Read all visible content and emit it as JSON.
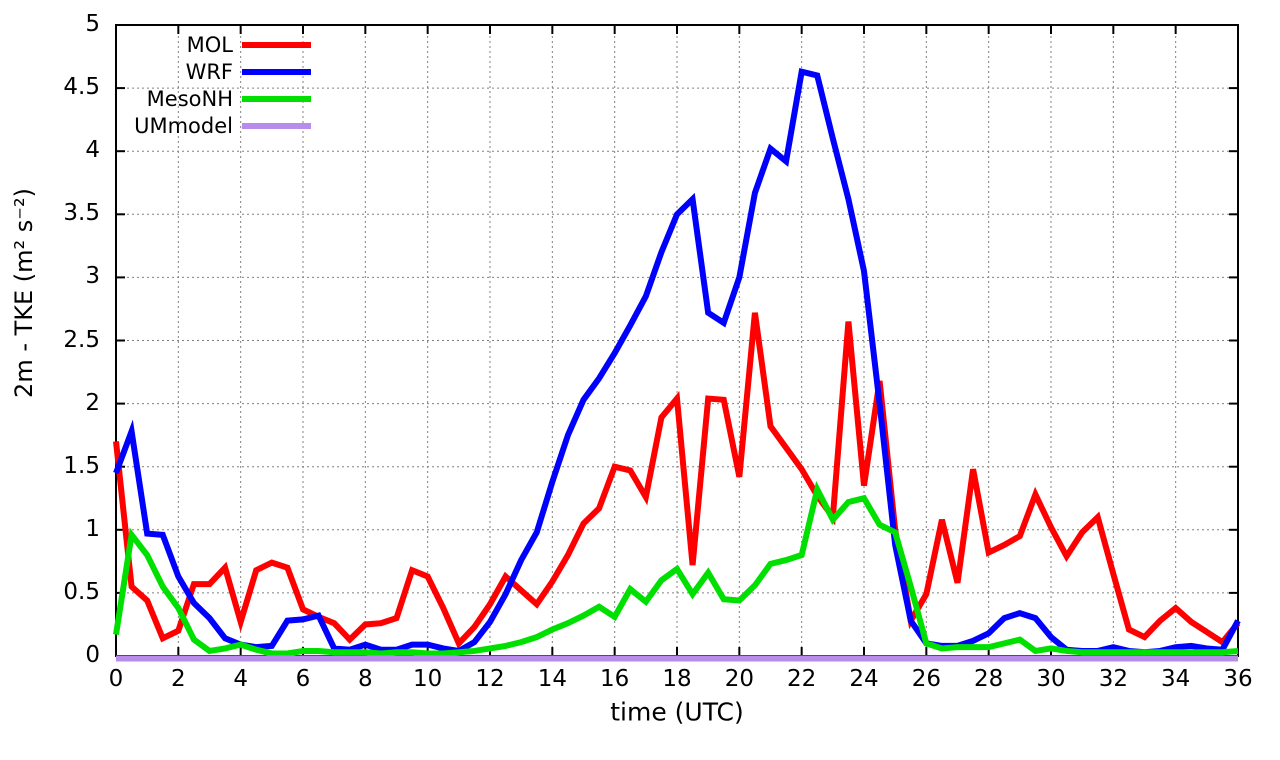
{
  "chart_data": {
    "type": "line",
    "title": "",
    "xlabel": "time (UTC)",
    "ylabel": "2m - TKE (m² s⁻²)",
    "xlim": [
      0,
      36
    ],
    "ylim": [
      0,
      5
    ],
    "xticks": [
      0,
      2,
      4,
      6,
      8,
      10,
      12,
      14,
      16,
      18,
      20,
      22,
      24,
      26,
      28,
      30,
      32,
      34,
      36
    ],
    "yticks": [
      0,
      0.5,
      1,
      1.5,
      2,
      2.5,
      3,
      3.5,
      4,
      4.5,
      5
    ],
    "grid": true,
    "grid_color": "#808080",
    "axis_color": "#000000",
    "background_color": "#ffffff",
    "legend_position": "top-left",
    "x": [
      0,
      0.5,
      1,
      1.5,
      2,
      2.5,
      3,
      3.5,
      4,
      4.5,
      5,
      5.5,
      6,
      6.5,
      7,
      7.5,
      8,
      8.5,
      9,
      9.5,
      10,
      10.5,
      11,
      11.5,
      12,
      12.5,
      13,
      13.5,
      14,
      14.5,
      15,
      15.5,
      16,
      16.5,
      17,
      17.5,
      18,
      18.5,
      19,
      19.5,
      20,
      20.5,
      21,
      21.5,
      22,
      22.5,
      23,
      23.5,
      24,
      24.5,
      25,
      25.5,
      26,
      26.5,
      27,
      27.5,
      28,
      28.5,
      29,
      29.5,
      30,
      30.5,
      31,
      31.5,
      32,
      32.5,
      33,
      33.5,
      34,
      34.5,
      35,
      35.5,
      36
    ],
    "series": [
      {
        "name": "MOL",
        "color": "#ff0000",
        "values": [
          1.7,
          0.55,
          0.44,
          0.14,
          0.2,
          0.57,
          0.57,
          0.7,
          0.27,
          0.68,
          0.74,
          0.7,
          0.37,
          0.31,
          0.26,
          0.13,
          0.25,
          0.26,
          0.3,
          0.68,
          0.63,
          0.38,
          0.1,
          0.23,
          0.41,
          0.63,
          0.52,
          0.41,
          0.59,
          0.8,
          1.05,
          1.17,
          1.5,
          1.47,
          1.26,
          1.89,
          2.04,
          0.72,
          2.04,
          2.03,
          1.42,
          2.72,
          1.82,
          1.65,
          1.48,
          1.27,
          1.1,
          2.65,
          1.35,
          2.18,
          1.0,
          0.28,
          0.49,
          1.08,
          0.58,
          1.48,
          0.82,
          0.88,
          0.95,
          1.28,
          1.02,
          0.79,
          0.98,
          1.1,
          0.65,
          0.21,
          0.15,
          0.28,
          0.38,
          0.27,
          0.19,
          0.11,
          0.26
        ]
      },
      {
        "name": "WRF",
        "color": "#0000ff",
        "values": [
          1.45,
          1.78,
          0.97,
          0.96,
          0.63,
          0.42,
          0.3,
          0.14,
          0.09,
          0.07,
          0.08,
          0.28,
          0.29,
          0.32,
          0.06,
          0.05,
          0.09,
          0.05,
          0.05,
          0.09,
          0.09,
          0.06,
          0.04,
          0.11,
          0.27,
          0.49,
          0.76,
          0.98,
          1.38,
          1.75,
          2.03,
          2.2,
          2.4,
          2.62,
          2.85,
          3.2,
          3.5,
          3.62,
          2.72,
          2.64,
          3.0,
          3.67,
          4.02,
          3.92,
          4.63,
          4.6,
          4.1,
          3.62,
          3.05,
          2.0,
          0.88,
          0.28,
          0.1,
          0.08,
          0.08,
          0.12,
          0.18,
          0.3,
          0.34,
          0.3,
          0.15,
          0.05,
          0.04,
          0.04,
          0.07,
          0.04,
          0.03,
          0.04,
          0.07,
          0.08,
          0.06,
          0.05,
          0.28
        ]
      },
      {
        "name": "MesoNH",
        "color": "#00e000",
        "values": [
          0.17,
          0.96,
          0.8,
          0.55,
          0.38,
          0.13,
          0.04,
          0.06,
          0.09,
          0.05,
          0.02,
          0.02,
          0.04,
          0.04,
          0.03,
          0.03,
          0.03,
          0.02,
          0.03,
          0.03,
          0.02,
          0.02,
          0.03,
          0.04,
          0.06,
          0.08,
          0.11,
          0.15,
          0.21,
          0.26,
          0.32,
          0.39,
          0.31,
          0.53,
          0.43,
          0.6,
          0.69,
          0.49,
          0.66,
          0.45,
          0.44,
          0.56,
          0.73,
          0.76,
          0.8,
          1.32,
          1.08,
          1.22,
          1.25,
          1.04,
          0.98,
          0.55,
          0.1,
          0.06,
          0.07,
          0.07,
          0.07,
          0.1,
          0.13,
          0.04,
          0.06,
          0.04,
          0.03,
          0.03,
          0.03,
          0.03,
          0.03,
          0.03,
          0.03,
          0.03,
          0.03,
          0.03,
          0.04
        ]
      },
      {
        "name": "UMmodel",
        "color": "#b98ceb",
        "x": [
          0,
          36
        ],
        "values": [
          0,
          0
        ],
        "overlaps_x_axis": true
      }
    ]
  }
}
